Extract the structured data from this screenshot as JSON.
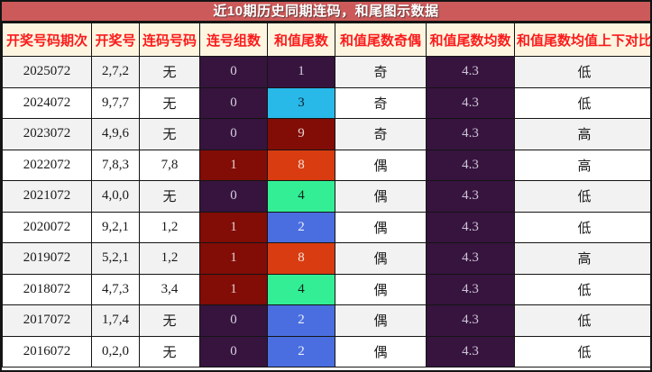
{
  "title": "近10期历史同期连码，和尾图示数据",
  "colors": {
    "title_bg": "#cd5a5a",
    "title_fg": "#ffffff",
    "header_bg": "#fdf5e0",
    "header_fg": "#fb1b1b",
    "border": "#141414",
    "row_odd_bg": "#f2f2f2",
    "row_even_bg": "#ffffff",
    "cell_purple": "#36143e",
    "cell_darkred": "#820c06",
    "cell_orangered": "#d83c10",
    "cell_cyan": "#29b9e9",
    "cell_green": "#33ee95",
    "cell_blue": "#4a6ee0",
    "light_text": "#d6cede",
    "dark_text": "#10222b"
  },
  "chart_data": {
    "type": "table",
    "title": "近10期历史同期连码，和尾图示数据",
    "headers": [
      "开奖号码期次",
      "开奖号",
      "连码号码",
      "连号组数",
      "和值尾数",
      "和值尾数奇偶",
      "和值尾数均数",
      "和值尾数均值上下对比"
    ],
    "rows": [
      {
        "period": "2025072",
        "numbers": "2,7,2",
        "pair": "无",
        "groups": "0",
        "groups_bg": "#36143e",
        "groups_fg": "#d6cede",
        "tail": "1",
        "tail_bg": "#36143e",
        "tail_fg": "#d6cede",
        "parity": "奇",
        "mean": "4.3",
        "mean_bg": "#36143e",
        "mean_fg": "#cfc6d6",
        "compare": "低"
      },
      {
        "period": "2024072",
        "numbers": "9,7,7",
        "pair": "无",
        "groups": "0",
        "groups_bg": "#36143e",
        "groups_fg": "#d6cede",
        "tail": "3",
        "tail_bg": "#29b9e9",
        "tail_fg": "#10222b",
        "parity": "奇",
        "mean": "4.3",
        "mean_bg": "#36143e",
        "mean_fg": "#cfc6d6",
        "compare": "低"
      },
      {
        "period": "2023072",
        "numbers": "4,9,6",
        "pair": "无",
        "groups": "0",
        "groups_bg": "#36143e",
        "groups_fg": "#d6cede",
        "tail": "9",
        "tail_bg": "#820c06",
        "tail_fg": "#e3d2d0",
        "parity": "奇",
        "mean": "4.3",
        "mean_bg": "#36143e",
        "mean_fg": "#cfc6d6",
        "compare": "高"
      },
      {
        "period": "2022072",
        "numbers": "7,8,3",
        "pair": "7,8",
        "groups": "1",
        "groups_bg": "#820c06",
        "groups_fg": "#e3d2d0",
        "tail": "8",
        "tail_bg": "#d83c10",
        "tail_fg": "#f3e2dc",
        "parity": "偶",
        "mean": "4.3",
        "mean_bg": "#36143e",
        "mean_fg": "#cfc6d6",
        "compare": "高"
      },
      {
        "period": "2021072",
        "numbers": "4,0,0",
        "pair": "无",
        "groups": "0",
        "groups_bg": "#36143e",
        "groups_fg": "#d6cede",
        "tail": "4",
        "tail_bg": "#33ee95",
        "tail_fg": "#0e2418",
        "parity": "偶",
        "mean": "4.3",
        "mean_bg": "#36143e",
        "mean_fg": "#cfc6d6",
        "compare": "低"
      },
      {
        "period": "2020072",
        "numbers": "9,2,1",
        "pair": "1,2",
        "groups": "1",
        "groups_bg": "#820c06",
        "groups_fg": "#e3d2d0",
        "tail": "2",
        "tail_bg": "#4a6ee0",
        "tail_fg": "#eceef8",
        "parity": "偶",
        "mean": "4.3",
        "mean_bg": "#36143e",
        "mean_fg": "#cfc6d6",
        "compare": "低"
      },
      {
        "period": "2019072",
        "numbers": "5,2,1",
        "pair": "1,2",
        "groups": "1",
        "groups_bg": "#820c06",
        "groups_fg": "#e3d2d0",
        "tail": "8",
        "tail_bg": "#d83c10",
        "tail_fg": "#f3e2dc",
        "parity": "偶",
        "mean": "4.3",
        "mean_bg": "#36143e",
        "mean_fg": "#cfc6d6",
        "compare": "高"
      },
      {
        "period": "2018072",
        "numbers": "4,7,3",
        "pair": "3,4",
        "groups": "1",
        "groups_bg": "#820c06",
        "groups_fg": "#e3d2d0",
        "tail": "4",
        "tail_bg": "#33ee95",
        "tail_fg": "#0e2418",
        "parity": "偶",
        "mean": "4.3",
        "mean_bg": "#36143e",
        "mean_fg": "#cfc6d6",
        "compare": "低"
      },
      {
        "period": "2017072",
        "numbers": "1,7,4",
        "pair": "无",
        "groups": "0",
        "groups_bg": "#36143e",
        "groups_fg": "#d6cede",
        "tail": "2",
        "tail_bg": "#4a6ee0",
        "tail_fg": "#eceef8",
        "parity": "偶",
        "mean": "4.3",
        "mean_bg": "#36143e",
        "mean_fg": "#cfc6d6",
        "compare": "低"
      },
      {
        "period": "2016072",
        "numbers": "0,2,0",
        "pair": "无",
        "groups": "0",
        "groups_bg": "#36143e",
        "groups_fg": "#d6cede",
        "tail": "2",
        "tail_bg": "#4a6ee0",
        "tail_fg": "#eceef8",
        "parity": "偶",
        "mean": "4.3",
        "mean_bg": "#36143e",
        "mean_fg": "#cfc6d6",
        "compare": "低"
      }
    ]
  }
}
